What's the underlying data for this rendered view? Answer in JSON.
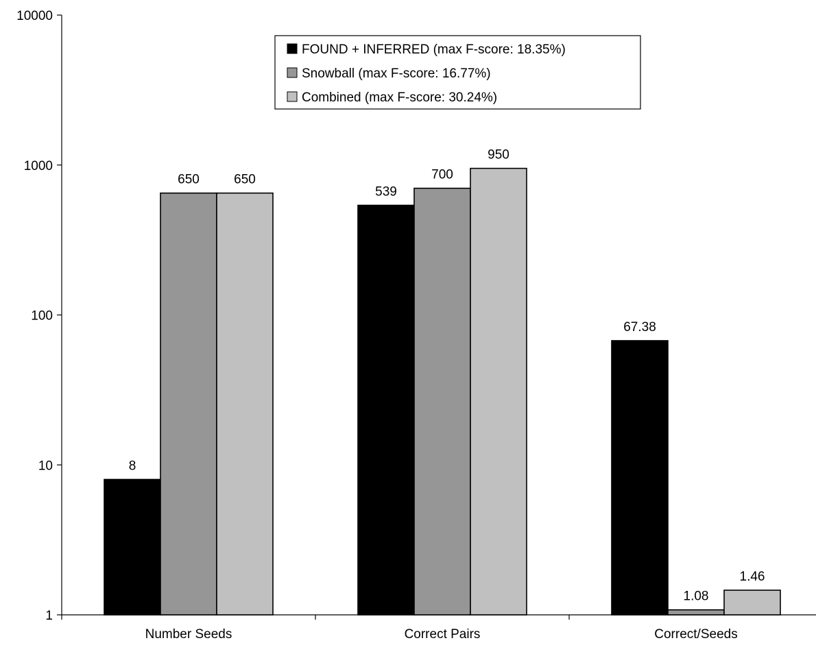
{
  "chart_data": {
    "type": "bar",
    "categories": [
      "Number Seeds",
      "Correct Pairs",
      "Correct/Seeds"
    ],
    "series": [
      {
        "name": "FOUND + INFERRED (max F-score: 18.35%)",
        "values": [
          8,
          539,
          67.38
        ],
        "labels": [
          "8",
          "539",
          "67.38"
        ],
        "color": "#000000"
      },
      {
        "name": "Snowball (max F-score: 16.77%)",
        "values": [
          650,
          700,
          1.08
        ],
        "labels": [
          "650",
          "700",
          "1.08"
        ],
        "color": "#969696"
      },
      {
        "name": "Combined (max F-score: 30.24%)",
        "values": [
          650,
          950,
          1.46
        ],
        "labels": [
          "650",
          "950",
          "1.46"
        ],
        "color": "#c0c0c0"
      }
    ],
    "yscale": "log",
    "ylim": [
      1,
      10000
    ],
    "yticks": [
      1,
      10,
      100,
      1000,
      10000
    ],
    "ytick_labels": [
      "1",
      "10",
      "100",
      "1000",
      "10000"
    ],
    "grid": false,
    "legend_position": "top-center",
    "title": "",
    "xlabel": "",
    "ylabel": ""
  }
}
